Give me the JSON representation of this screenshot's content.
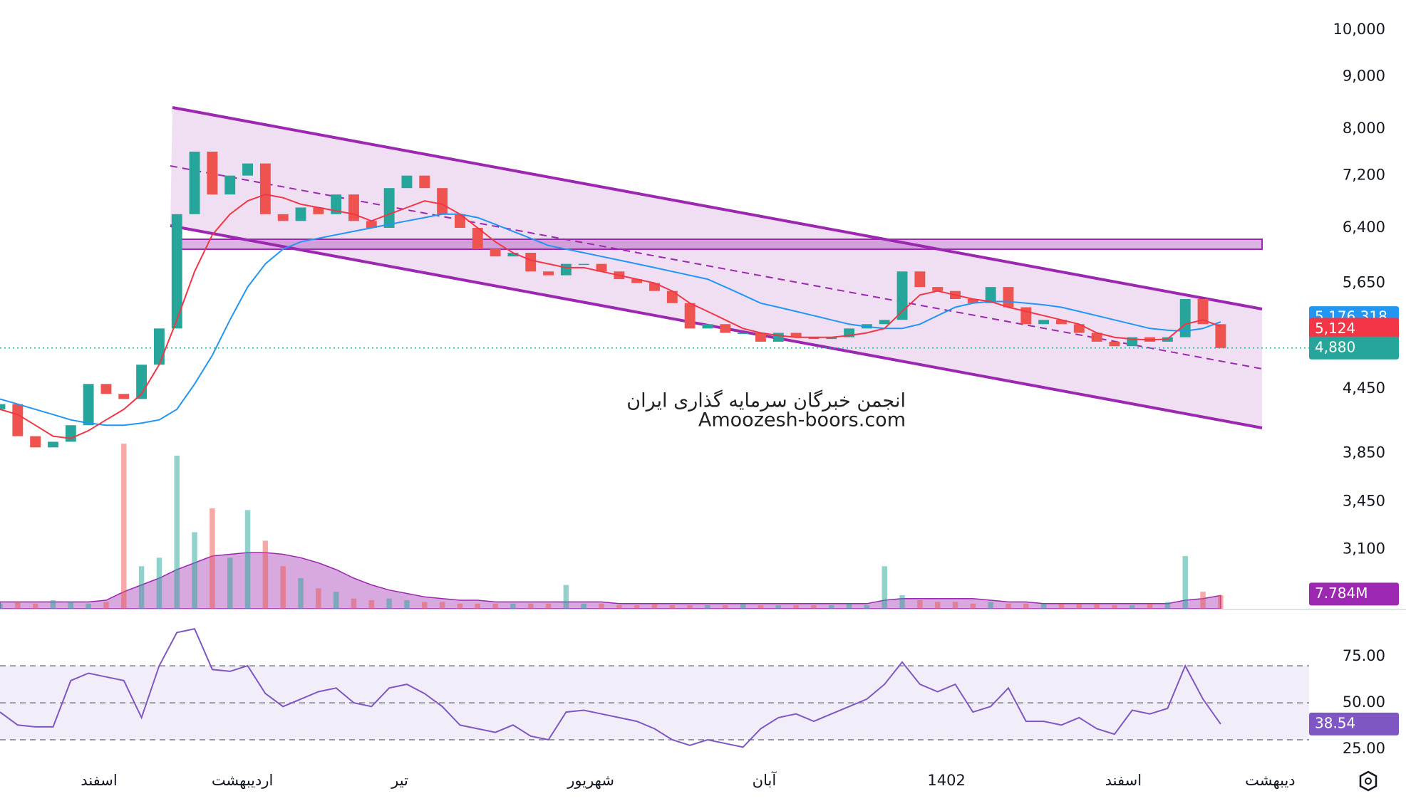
{
  "chart_data": [
    {
      "type": "candlestick",
      "xlim": [
        0,
        74
      ],
      "ylim": [
        2710,
        10700
      ],
      "log_scale": true,
      "yticks": [
        {
          "value": 3100,
          "label": "3,100"
        },
        {
          "value": 3450,
          "label": "3,450"
        },
        {
          "value": 3850,
          "label": "3,850"
        },
        {
          "value": 4450,
          "label": "4,450"
        },
        {
          "value": 5650,
          "label": "5,650"
        },
        {
          "value": 6400,
          "label": "6,400"
        },
        {
          "value": 7200,
          "label": "7,200"
        },
        {
          "value": 8000,
          "label": "8,000"
        },
        {
          "value": 9000,
          "label": "9,000"
        },
        {
          "value": 10000,
          "label": "10,000"
        }
      ],
      "up_color": "#26a69a",
      "down_color": "#ef5350",
      "open": [
        4250,
        4300,
        4000,
        3900,
        3950,
        4100,
        4500,
        4400,
        4350,
        4700,
        5100,
        6600,
        7600,
        6900,
        7200,
        7400,
        6600,
        6500,
        6700,
        6600,
        6900,
        6500,
        6400,
        7000,
        7200,
        7000,
        6600,
        6400,
        6100,
        6000,
        6050,
        5800,
        5750,
        5900,
        5900,
        5800,
        5700,
        5650,
        5550,
        5400,
        5100,
        5150,
        5050,
        5050,
        4950,
        5050,
        5000,
        4980,
        5000,
        5100,
        5150,
        5200,
        5800,
        5600,
        5550,
        5450,
        5400,
        5600,
        5350,
        5150,
        5200,
        5150,
        5050,
        4950,
        4900,
        5000,
        4950,
        5000,
        5450,
        5150
      ],
      "close": [
        4300,
        4000,
        3900,
        3950,
        4100,
        4500,
        4400,
        4350,
        4700,
        5100,
        6600,
        7600,
        6900,
        7200,
        7400,
        6600,
        6500,
        6700,
        6600,
        6900,
        6500,
        6400,
        7000,
        7200,
        7000,
        6600,
        6400,
        6100,
        6000,
        6050,
        5800,
        5750,
        5900,
        5900,
        5800,
        5700,
        5650,
        5550,
        5400,
        5100,
        5150,
        5050,
        5050,
        4950,
        5050,
        5000,
        4980,
        5000,
        5100,
        5150,
        5200,
        5800,
        5600,
        5550,
        5450,
        5400,
        5600,
        5350,
        5150,
        5200,
        5150,
        5050,
        4950,
        4900,
        5000,
        4950,
        5000,
        5450,
        5150,
        4880
      ],
      "close_tag": {
        "value": 4880,
        "label": "4,880"
      },
      "ma_fast": {
        "color": "#f23645",
        "values": [
          4250,
          4200,
          4100,
          4000,
          3980,
          4050,
          4150,
          4250,
          4400,
          4700,
          5200,
          5800,
          6300,
          6600,
          6800,
          6900,
          6850,
          6750,
          6700,
          6650,
          6600,
          6500,
          6600,
          6700,
          6800,
          6750,
          6600,
          6400,
          6200,
          6050,
          5950,
          5900,
          5850,
          5850,
          5800,
          5750,
          5700,
          5650,
          5550,
          5400,
          5300,
          5200,
          5100,
          5050,
          5020,
          5000,
          5000,
          5000,
          5020,
          5050,
          5100,
          5300,
          5500,
          5550,
          5500,
          5450,
          5420,
          5350,
          5300,
          5250,
          5200,
          5150,
          5050,
          5000,
          4980,
          4970,
          4980,
          5150,
          5200,
          5124
        ],
        "tag": {
          "value": 5124,
          "label": "5,124"
        }
      },
      "ma_slow": {
        "color": "#2196f3",
        "values": [
          4350,
          4300,
          4250,
          4200,
          4150,
          4120,
          4100,
          4100,
          4120,
          4150,
          4250,
          4500,
          4800,
          5200,
          5600,
          5900,
          6100,
          6200,
          6250,
          6300,
          6350,
          6400,
          6450,
          6500,
          6550,
          6600,
          6600,
          6550,
          6450,
          6350,
          6250,
          6150,
          6100,
          6050,
          6000,
          5950,
          5900,
          5850,
          5800,
          5750,
          5700,
          5600,
          5500,
          5400,
          5350,
          5300,
          5250,
          5200,
          5150,
          5120,
          5100,
          5100,
          5150,
          5250,
          5350,
          5400,
          5420,
          5420,
          5400,
          5380,
          5350,
          5300,
          5250,
          5200,
          5150,
          5100,
          5080,
          5070,
          5100,
          5176.318
        ],
        "tag": {
          "value": 5176.318,
          "label": "5,176.318"
        }
      },
      "volume": {
        "ylim": [
          0,
          100
        ],
        "ma_color": "#9c27b0",
        "values": [
          3,
          4,
          3,
          5,
          4,
          3,
          4,
          97,
          25,
          30,
          90,
          45,
          59,
          30,
          58,
          40,
          25,
          18,
          12,
          10,
          6,
          5,
          6,
          5,
          4,
          4,
          3,
          3,
          3,
          3,
          3,
          3,
          14,
          3,
          3,
          2,
          2,
          3,
          2,
          2,
          2,
          2,
          3,
          2,
          2,
          2,
          2,
          2,
          3,
          2,
          25,
          8,
          5,
          4,
          4,
          3,
          4,
          3,
          3,
          3,
          3,
          3,
          3,
          2,
          2,
          3,
          4,
          31,
          10,
          8
        ],
        "ma": [
          4,
          4,
          4,
          4,
          4,
          4,
          5,
          10,
          14,
          18,
          23,
          27,
          31,
          32,
          33,
          33,
          32,
          30,
          27,
          23,
          18,
          14,
          11,
          9,
          7,
          6,
          5,
          5,
          4,
          4,
          4,
          4,
          4,
          4,
          4,
          3,
          3,
          3,
          3,
          3,
          3,
          3,
          3,
          3,
          3,
          3,
          3,
          3,
          3,
          3,
          5,
          6,
          6,
          6,
          6,
          6,
          5,
          4,
          4,
          3,
          3,
          3,
          3,
          3,
          3,
          3,
          3,
          5,
          6,
          7.784
        ],
        "tag": {
          "value": 7.784,
          "label": "7.784M"
        }
      },
      "annotations": [
        "انجمن خبرگان سرمایه گذاری ایران",
        "Amoozesh-boors.com"
      ]
    },
    {
      "type": "line",
      "xlim": [
        0,
        74
      ],
      "xticks": [
        {
          "value": 5.6,
          "label": "اسفند"
        },
        {
          "value": 13.7,
          "label": "اردیبهشت"
        },
        {
          "value": 22.6,
          "label": "تیر"
        },
        {
          "value": 33.4,
          "label": "شهریور"
        },
        {
          "value": 43.2,
          "label": "آبان"
        },
        {
          "value": 53.5,
          "label": "1402"
        },
        {
          "value": 63.5,
          "label": "اسفند"
        },
        {
          "value": 71.8,
          "label": "دیبهشت"
        }
      ],
      "ylim": [
        15,
        97
      ],
      "yticks": [
        {
          "value": 25,
          "label": "25.00"
        },
        {
          "value": 50,
          "label": "50.00"
        },
        {
          "value": 75,
          "label": "75.00"
        }
      ],
      "bands": [
        30,
        50,
        70
      ],
      "color": "#7e57c2",
      "values": [
        45,
        38,
        37,
        37,
        62,
        66,
        64,
        62,
        42,
        70,
        88,
        90,
        68,
        67,
        70,
        55,
        48,
        52,
        56,
        58,
        50,
        48,
        58,
        60,
        55,
        48,
        38,
        36,
        34,
        38,
        32,
        30,
        45,
        46,
        44,
        42,
        40,
        36,
        30,
        27,
        30,
        28,
        26,
        36,
        42,
        44,
        40,
        44,
        48,
        52,
        60,
        72,
        60,
        56,
        60,
        45,
        48,
        58,
        40,
        40,
        38,
        42,
        36,
        33,
        46,
        44,
        47,
        70,
        52,
        38.54
      ],
      "tag": {
        "value": 38.54,
        "label": "38.54"
      }
    }
  ]
}
